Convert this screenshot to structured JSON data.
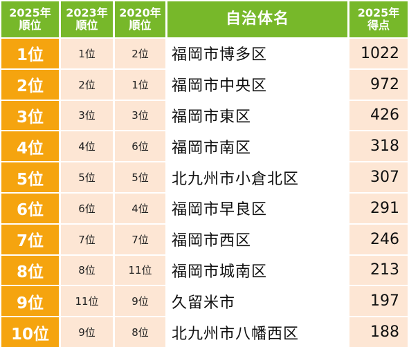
{
  "header": {
    "rank_2025": [
      "2025年",
      "順位"
    ],
    "rank_2023": [
      "2023年",
      "順位"
    ],
    "rank_2020": [
      "2020年",
      "順位"
    ],
    "municipality": "自治体名",
    "score_2025": [
      "2025年",
      "得点"
    ]
  },
  "rows": [
    {
      "rank_2025": "1位",
      "rank_2023": "1位",
      "rank_2020": "2位",
      "name": "福岡市博多区",
      "score": "1022"
    },
    {
      "rank_2025": "2位",
      "rank_2023": "2位",
      "rank_2020": "1位",
      "name": "福岡市中央区",
      "score": "972"
    },
    {
      "rank_2025": "3位",
      "rank_2023": "3位",
      "rank_2020": "3位",
      "name": "福岡市東区",
      "score": "426"
    },
    {
      "rank_2025": "4位",
      "rank_2023": "4位",
      "rank_2020": "6位",
      "name": "福岡市南区",
      "score": "318"
    },
    {
      "rank_2025": "5位",
      "rank_2023": "5位",
      "rank_2020": "5位",
      "name": "北九州市小倉北区",
      "score": "307"
    },
    {
      "rank_2025": "6位",
      "rank_2023": "6位",
      "rank_2020": "4位",
      "name": "福岡市早良区",
      "score": "291"
    },
    {
      "rank_2025": "7位",
      "rank_2023": "7位",
      "rank_2020": "7位",
      "name": "福岡市西区",
      "score": "246"
    },
    {
      "rank_2025": "8位",
      "rank_2023": "8位",
      "rank_2020": "11位",
      "name": "福岡市城南区",
      "score": "213"
    },
    {
      "rank_2025": "9位",
      "rank_2023": "11位",
      "rank_2020": "9位",
      "name": "久留米市",
      "score": "197"
    },
    {
      "rank_2025": "10位",
      "rank_2023": "9位",
      "rank_2020": "8位",
      "name": "北九州市八幡西区",
      "score": "188"
    }
  ],
  "colors": {
    "header_bg": "#77b82a",
    "rank_bg": "#f5a40f",
    "secondary_bg": "#fde6d4"
  }
}
